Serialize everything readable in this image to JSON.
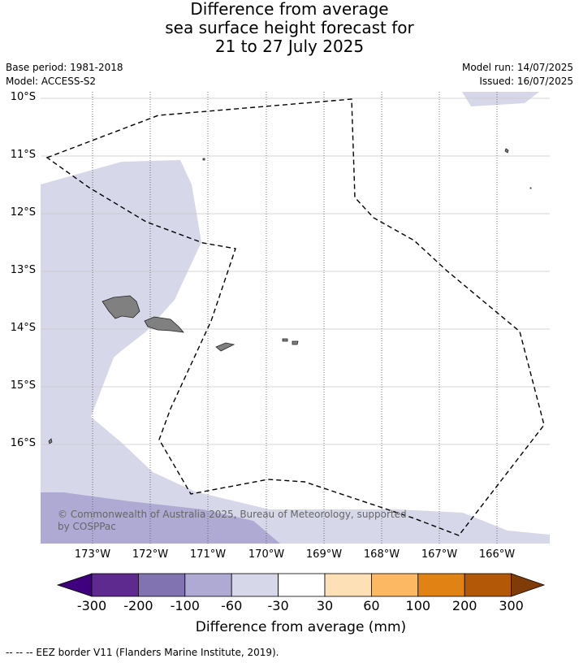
{
  "title": {
    "line1": "Difference from average",
    "line2": "sea surface height forecast for",
    "line3": "21 to 27 July 2025"
  },
  "meta": {
    "base_period": "Base period: 1981-2018",
    "model": "Model: ACCESS-S2",
    "model_run": "Model run: 14/07/2025",
    "issued": "Issued: 16/07/2025"
  },
  "map": {
    "lat_labels": [
      "10°S",
      "11°S",
      "12°S",
      "13°S",
      "14°S",
      "15°S",
      "16°S"
    ],
    "lon_labels": [
      "173°W",
      "172°W",
      "171°W",
      "170°W",
      "169°W",
      "168°W",
      "167°W",
      "166°W"
    ],
    "copyright_line1": "© Commonwealth of Australia 2025, Bureau of Meteorology, supported",
    "copyright_line2": "by COSPPac",
    "colors": {
      "band_minus60_minus30": "#d7d7ea",
      "band_minus100_minus60": "#aeaad3",
      "land": "#808080",
      "eez_border": "#000000"
    }
  },
  "colorbar": {
    "title": "Difference from average (mm)",
    "ticks": [
      "-300",
      "-200",
      "-100",
      "-60",
      "-30",
      "30",
      "60",
      "100",
      "200",
      "300"
    ],
    "colors": [
      "#3f007d",
      "#5e2a8f",
      "#8173b1",
      "#aeaad3",
      "#d7d7ea",
      "#ffffff",
      "#fee0b6",
      "#fdb863",
      "#e08214",
      "#b35806",
      "#7f3b08"
    ]
  },
  "footer": {
    "text": "--  --  -- EEZ border V11 (Flanders Marine Institute, 2019)."
  }
}
